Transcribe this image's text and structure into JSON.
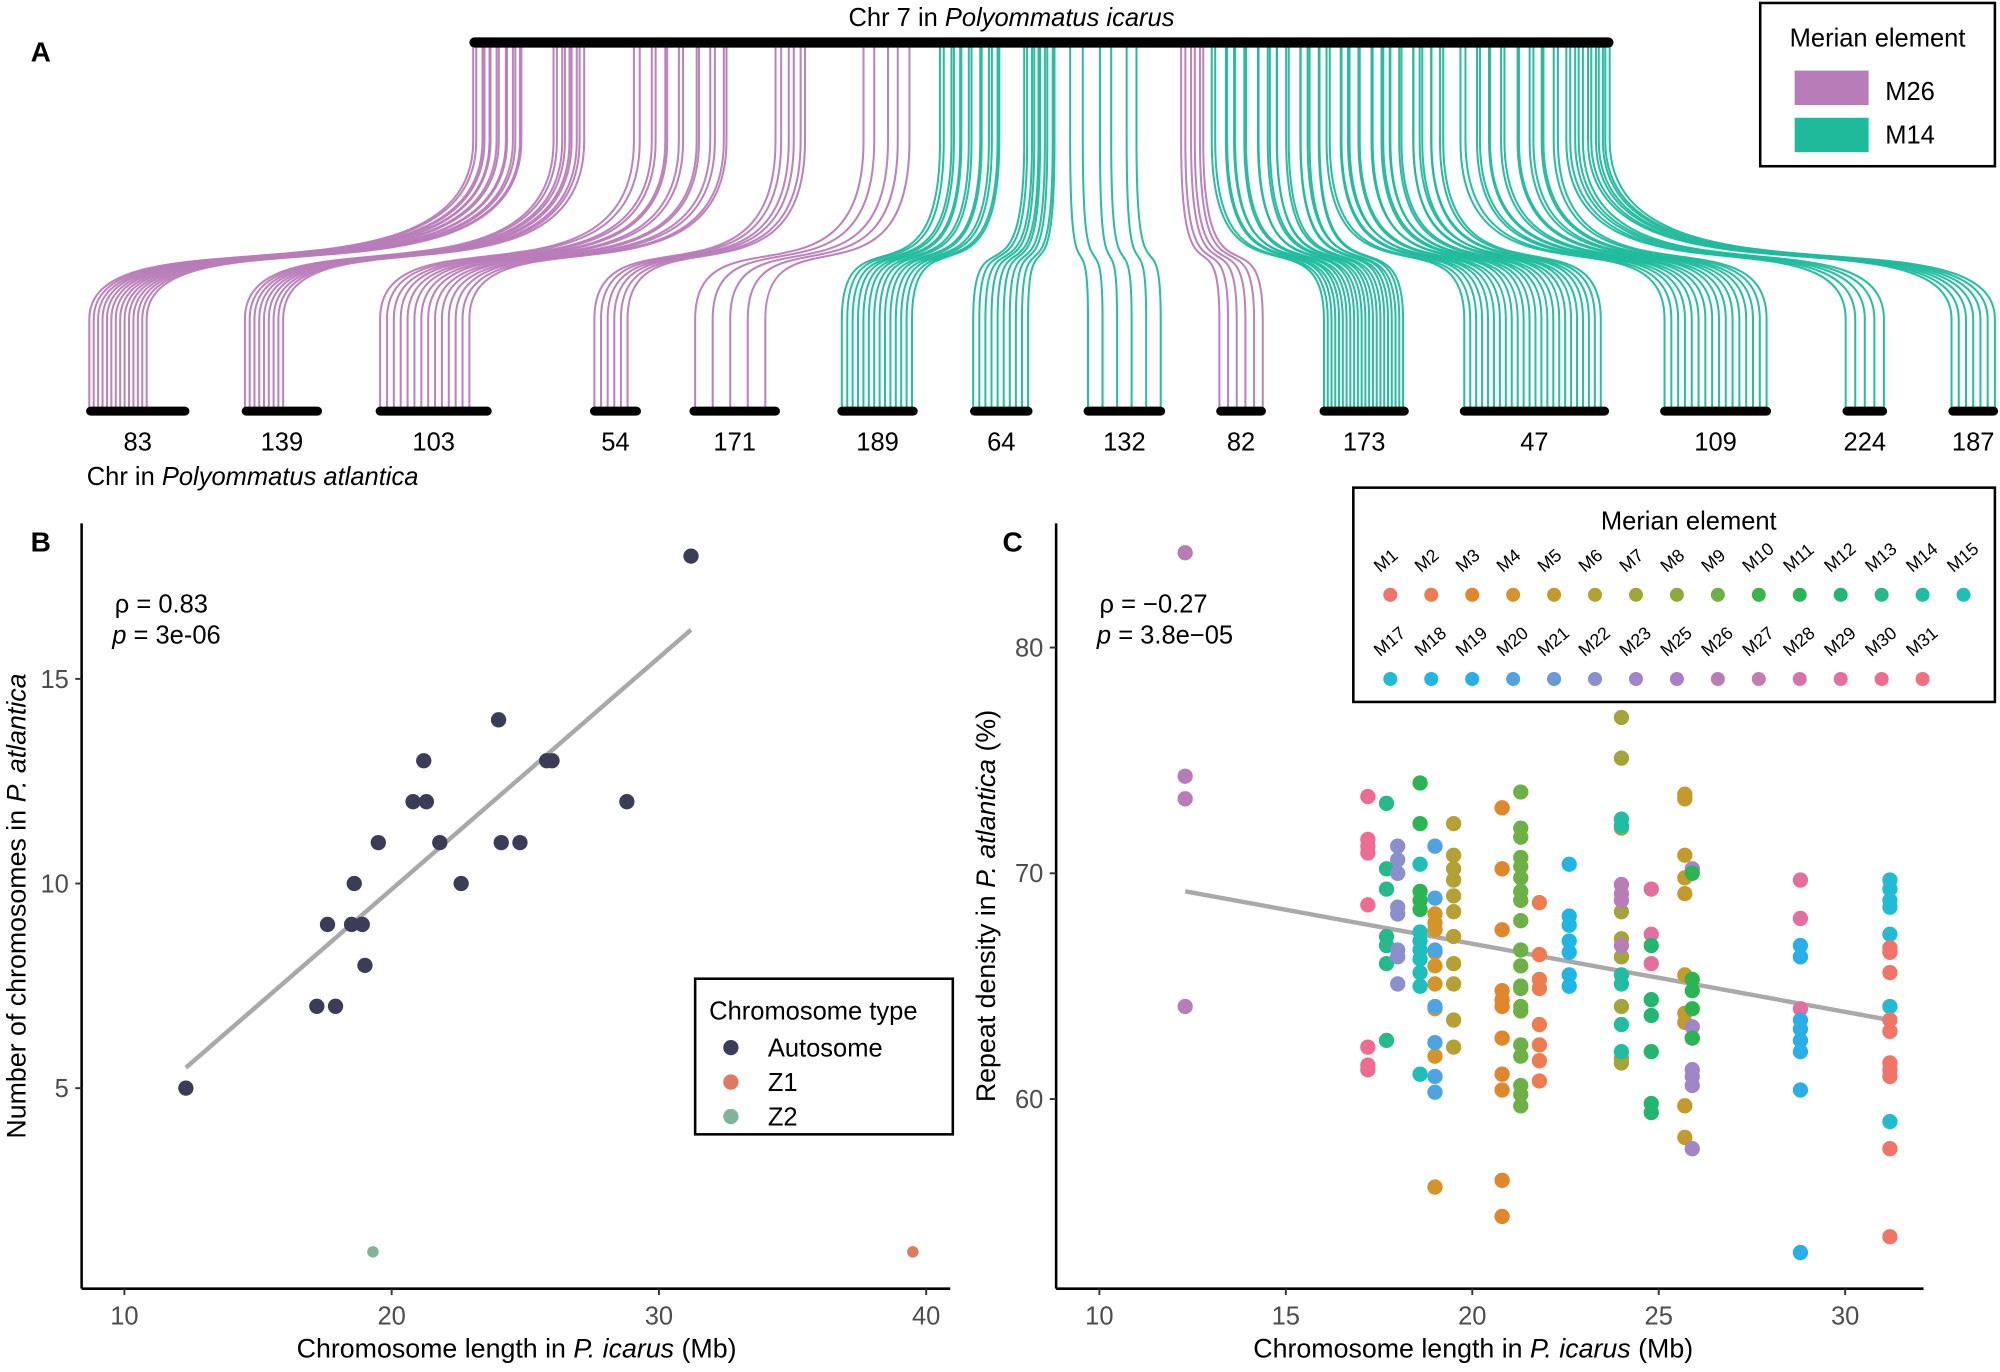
{
  "panel_a": {
    "letter": "A",
    "top_title_prefix": "Chr 7 in ",
    "top_title_species": "Polyommatus icarus",
    "bottom_title_prefix": "Chr in ",
    "bottom_title_species": "Polyommatus atlantica",
    "legend": {
      "title": "Merian element",
      "items": [
        {
          "label": "M26",
          "color": "#B87CB8"
        },
        {
          "label": "M14",
          "color": "#1FBA9C"
        }
      ]
    },
    "bottom_chromosomes": [
      {
        "label": "83",
        "element": "M26",
        "links": 14
      },
      {
        "label": "139",
        "element": "M26",
        "links": 9
      },
      {
        "label": "103",
        "element": "M26",
        "links": 14
      },
      {
        "label": "54",
        "element": "M26",
        "links": 6
      },
      {
        "label": "171",
        "element": "M26",
        "links": 5
      },
      {
        "label": "189",
        "element": "M14",
        "links": 14
      },
      {
        "label": "64",
        "element": "M14",
        "links": 10
      },
      {
        "label": "132",
        "element": "M14",
        "links": 6
      },
      {
        "label": "82",
        "element": "M26",
        "links": 6
      },
      {
        "label": "173",
        "element": "M14",
        "links": 22
      },
      {
        "label": "47",
        "element": "M14",
        "links": 24
      },
      {
        "label": "109",
        "element": "M14",
        "links": 16
      },
      {
        "label": "224",
        "element": "M14",
        "links": 5
      },
      {
        "label": "187",
        "element": "M14",
        "links": 7
      }
    ]
  },
  "chart_data": [
    {
      "panel": "B",
      "type": "scatter",
      "xlabel_prefix": "Chromosome length in ",
      "xlabel_species": "P. icarus",
      "xlabel_suffix": " (Mb)",
      "ylabel_prefix": "Number of chromosomes in ",
      "ylabel_species": "P. atlantica",
      "xlim": [
        8.4,
        40.9
      ],
      "ylim": [
        0.1,
        18.8
      ],
      "xticks": [
        10,
        20,
        30,
        40
      ],
      "yticks": [
        5,
        10,
        15
      ],
      "grid": false,
      "stat_rho": "ρ = 0.83",
      "stat_p_symbol": "p",
      "stat_p_value": " = 3e-06",
      "trend": {
        "x": [
          12.3,
          31.2
        ],
        "y": [
          5.5,
          16.2
        ],
        "color": "#A9A9A9"
      },
      "legend": {
        "title": "Chromosome type",
        "placement": "bottom-right",
        "items": [
          {
            "label": "Autosome",
            "color": "#3B3D58"
          },
          {
            "label": "Z1",
            "color": "#E07A5F"
          },
          {
            "label": "Z2",
            "color": "#7FB39A"
          }
        ]
      },
      "points": [
        {
          "x": 12.3,
          "y": 5,
          "type": "Autosome"
        },
        {
          "x": 17.2,
          "y": 7,
          "type": "Autosome"
        },
        {
          "x": 17.9,
          "y": 7,
          "type": "Autosome"
        },
        {
          "x": 17.6,
          "y": 9,
          "type": "Autosome"
        },
        {
          "x": 18.5,
          "y": 9,
          "type": "Autosome"
        },
        {
          "x": 18.9,
          "y": 9,
          "type": "Autosome"
        },
        {
          "x": 18.6,
          "y": 10,
          "type": "Autosome"
        },
        {
          "x": 19.0,
          "y": 8,
          "type": "Autosome"
        },
        {
          "x": 19.5,
          "y": 11,
          "type": "Autosome"
        },
        {
          "x": 20.8,
          "y": 12,
          "type": "Autosome"
        },
        {
          "x": 21.3,
          "y": 12,
          "type": "Autosome"
        },
        {
          "x": 21.2,
          "y": 13,
          "type": "Autosome"
        },
        {
          "x": 21.8,
          "y": 11,
          "type": "Autosome"
        },
        {
          "x": 22.6,
          "y": 10,
          "type": "Autosome"
        },
        {
          "x": 24.0,
          "y": 14,
          "type": "Autosome"
        },
        {
          "x": 24.1,
          "y": 11,
          "type": "Autosome"
        },
        {
          "x": 24.8,
          "y": 11,
          "type": "Autosome"
        },
        {
          "x": 25.8,
          "y": 13,
          "type": "Autosome"
        },
        {
          "x": 26.0,
          "y": 13,
          "type": "Autosome"
        },
        {
          "x": 28.8,
          "y": 12,
          "type": "Autosome"
        },
        {
          "x": 31.2,
          "y": 18,
          "type": "Autosome"
        },
        {
          "x": 19.3,
          "y": 1,
          "type": "Z2"
        },
        {
          "x": 39.5,
          "y": 1,
          "type": "Z1"
        }
      ]
    },
    {
      "panel": "C",
      "type": "scatter",
      "xlabel_prefix": "Chromosome length in ",
      "xlabel_species": "P. icarus",
      "xlabel_suffix": " (Mb)",
      "ylabel_prefix": "Repeat density in ",
      "ylabel_species": "P. atlantica",
      "ylabel_suffix": " (%)",
      "xlim": [
        8.84,
        32.1
      ],
      "ylim": [
        51.6,
        85.5
      ],
      "xticks": [
        10,
        15,
        20,
        25,
        30
      ],
      "yticks": [
        60,
        70,
        80
      ],
      "grid": false,
      "stat_rho": "ρ = −0.27",
      "stat_p_symbol": "p",
      "stat_p_value": " = 3.8e−05",
      "trend": {
        "x": [
          12.3,
          31.2
        ],
        "y": [
          69.2,
          63.5
        ],
        "color": "#A9A9A9"
      },
      "legend": {
        "title": "Merian element",
        "placement": "top-right",
        "items": [
          {
            "label": "M1",
            "color": "#F07468"
          },
          {
            "label": "M2",
            "color": "#EE7C4E"
          },
          {
            "label": "M3",
            "color": "#E0862B"
          },
          {
            "label": "M4",
            "color": "#D4942A"
          },
          {
            "label": "M5",
            "color": "#C49A2C"
          },
          {
            "label": "M6",
            "color": "#B5A033"
          },
          {
            "label": "M7",
            "color": "#A3A53A"
          },
          {
            "label": "M8",
            "color": "#8EAA3E"
          },
          {
            "label": "M9",
            "color": "#6DB045"
          },
          {
            "label": "M10",
            "color": "#39B54A"
          },
          {
            "label": "M11",
            "color": "#2BB552"
          },
          {
            "label": "M12",
            "color": "#23B66E"
          },
          {
            "label": "M13",
            "color": "#25B98B"
          },
          {
            "label": "M14",
            "color": "#22BCA2"
          },
          {
            "label": "M15",
            "color": "#1EBEBB"
          },
          {
            "label": "M17",
            "color": "#22BBD4"
          },
          {
            "label": "M18",
            "color": "#1FB6E3"
          },
          {
            "label": "M19",
            "color": "#2AAEE8"
          },
          {
            "label": "M20",
            "color": "#4EA3E0"
          },
          {
            "label": "M21",
            "color": "#6C98D8"
          },
          {
            "label": "M22",
            "color": "#8B8FCE"
          },
          {
            "label": "M23",
            "color": "#9F86C8"
          },
          {
            "label": "M25",
            "color": "#AC7FC1"
          },
          {
            "label": "M26",
            "color": "#B87CB8"
          },
          {
            "label": "M27",
            "color": "#C57AB0"
          },
          {
            "label": "M28",
            "color": "#D673A8"
          },
          {
            "label": "M29",
            "color": "#E56EA0"
          },
          {
            "label": "M30",
            "color": "#EE6C94"
          },
          {
            "label": "M31",
            "color": "#F07080"
          }
        ]
      },
      "point_groups": [
        {
          "x": 12.3,
          "element": "M26",
          "y": [
            84.2,
            74.3,
            73.3,
            64.1
          ]
        },
        {
          "x": 17.2,
          "element": "M30",
          "y": [
            73.4,
            71.5,
            71.2,
            70.9,
            68.6,
            62.3,
            61.5,
            61.3
          ]
        },
        {
          "x": 17.7,
          "element": "M13",
          "y": [
            73.1,
            70.2,
            69.3,
            67.2,
            66.8,
            66.0,
            62.6
          ]
        },
        {
          "x": 18.0,
          "element": "M22",
          "y": [
            71.2,
            70.6,
            70.0,
            68.5,
            68.2,
            66.6,
            66.3,
            65.1
          ]
        },
        {
          "x": 18.6,
          "element": "M11",
          "y": [
            74.0,
            72.2,
            69.2,
            68.8,
            68.4
          ]
        },
        {
          "x": 18.6,
          "element": "M15",
          "y": [
            70.4,
            67.4,
            67.0,
            66.6,
            66.2,
            65.6,
            65.0,
            61.1
          ]
        },
        {
          "x": 19.0,
          "element": "M4",
          "y": [
            68.2,
            67.8,
            67.5,
            66.5,
            65.9,
            65.1,
            64.0,
            61.9,
            56.1
          ]
        },
        {
          "x": 19.0,
          "element": "M20",
          "y": [
            71.2,
            68.9,
            66.6,
            64.1,
            62.5,
            61.0,
            60.3
          ]
        },
        {
          "x": 19.5,
          "element": "M6",
          "y": [
            72.2,
            70.8,
            70.2,
            69.7,
            69.0,
            68.3,
            67.2,
            66.0,
            65.1,
            63.5,
            62.3
          ]
        },
        {
          "x": 20.8,
          "element": "M3",
          "y": [
            72.9,
            70.2,
            67.5,
            64.8,
            64.4,
            64.1,
            62.7,
            61.1,
            60.4,
            56.4,
            54.8
          ]
        },
        {
          "x": 21.3,
          "element": "M9",
          "y": [
            73.6,
            72.0,
            71.6,
            70.7,
            70.3,
            69.8,
            69.2,
            68.8,
            67.9,
            66.6,
            65.9,
            65.0,
            64.9,
            64.1,
            63.9,
            62.4,
            61.9,
            60.6,
            60.2,
            59.7
          ]
        },
        {
          "x": 21.8,
          "element": "M2",
          "y": [
            68.7,
            66.4,
            65.3,
            64.9,
            63.3,
            62.4,
            61.7,
            60.8
          ]
        },
        {
          "x": 22.6,
          "element": "M18",
          "y": [
            70.4,
            68.1,
            67.7,
            67.0,
            66.5,
            65.5,
            65.0
          ]
        },
        {
          "x": 24.0,
          "element": "M7",
          "y": [
            76.9,
            75.1,
            72.0,
            68.3,
            67.1,
            66.3,
            64.1,
            61.6,
            61.8
          ]
        },
        {
          "x": 24.0,
          "element": "M14",
          "y": [
            72.4,
            72.1,
            65.5,
            65.1,
            63.3,
            62.1
          ]
        },
        {
          "x": 24.0,
          "element": "M26",
          "y": [
            69.5,
            69.1,
            68.8,
            66.8
          ]
        },
        {
          "x": 24.8,
          "element": "M29",
          "y": [
            69.3,
            67.3,
            66.0
          ]
        },
        {
          "x": 24.8,
          "element": "M12",
          "y": [
            66.8,
            64.4,
            63.7,
            62.1,
            59.8,
            59.4
          ]
        },
        {
          "x": 25.7,
          "element": "M5",
          "y": [
            73.5,
            73.3,
            70.8,
            69.8,
            69.1,
            65.5,
            63.8,
            63.4,
            59.7,
            58.3
          ]
        },
        {
          "x": 25.9,
          "element": "M23",
          "y": [
            70.2,
            63.2,
            62.7,
            61.3,
            61.0,
            60.6,
            57.8
          ]
        },
        {
          "x": 25.9,
          "element": "M11",
          "y": [
            70.0,
            65.3,
            64.8,
            64.0,
            62.7
          ]
        },
        {
          "x": 28.8,
          "element": "M29",
          "y": [
            69.7,
            68.0,
            64.0
          ]
        },
        {
          "x": 28.8,
          "element": "M19",
          "y": [
            66.8,
            66.3,
            63.5,
            63.1,
            62.6,
            62.1,
            60.4,
            53.2
          ]
        },
        {
          "x": 31.2,
          "element": "M17",
          "y": [
            69.7,
            69.3,
            68.8,
            68.5,
            67.3,
            64.1,
            59.0
          ]
        },
        {
          "x": 31.2,
          "element": "M1",
          "y": [
            66.7,
            66.5,
            65.6,
            63.5,
            63.0,
            61.6,
            61.3,
            61.0,
            57.8,
            53.9
          ]
        }
      ]
    }
  ]
}
